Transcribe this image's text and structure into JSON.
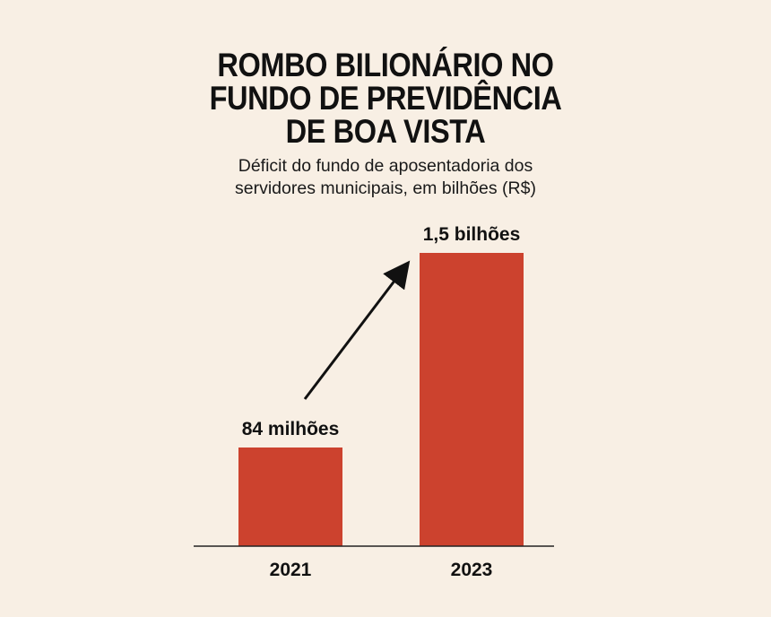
{
  "colors": {
    "background": "#f8efe4",
    "bar": "#cc422e",
    "axis": "#222222",
    "arrow": "#111111",
    "text": "#111111"
  },
  "title_lines": [
    "ROMBO BILIONÁRIO NO",
    "FUNDO DE PREVIDÊNCIA",
    "DE BOA VISTA"
  ],
  "subtitle_lines": [
    "Déficit do fundo de aposentadoria dos",
    "servidores municipais, em bilhões (R$)"
  ],
  "chart_data": {
    "type": "bar",
    "title": "ROMBO BILIONÁRIO NO FUNDO DE PREVIDÊNCIA DE BOA VISTA",
    "subtitle": "Déficit do fundo de aposentadoria dos servidores municipais, em bilhões (R$)",
    "categories": [
      "2021",
      "2023"
    ],
    "values": [
      0.084,
      1.5
    ],
    "value_labels": [
      "84 milhões",
      "1,5 bilhões"
    ],
    "unit": "bilhões (R$)",
    "ylim": [
      0,
      1.5
    ],
    "grid": false,
    "legend": "none",
    "annotations": [
      "arrow pointing up from 2021 to 2023"
    ]
  }
}
